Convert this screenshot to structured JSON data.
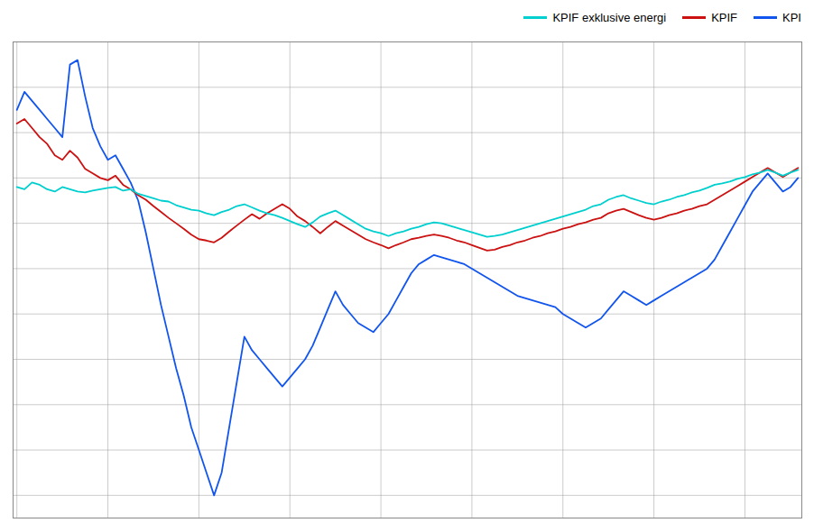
{
  "chart_data": {
    "type": "line",
    "x": [
      0,
      1,
      2,
      3,
      4,
      5,
      6,
      7,
      8,
      9,
      10,
      11,
      12,
      13,
      14,
      15,
      16,
      17,
      18,
      19,
      20,
      21,
      22,
      23,
      24,
      25,
      26,
      27,
      28,
      29,
      30,
      31,
      32,
      33,
      34,
      35,
      36,
      37,
      38,
      39,
      40,
      41,
      42,
      43,
      44,
      45,
      46,
      47,
      48,
      49,
      50,
      51,
      52,
      53,
      54,
      55,
      56,
      57,
      58,
      59,
      60,
      61,
      62,
      63,
      64,
      65,
      66,
      67,
      68,
      69,
      70,
      71,
      72,
      73,
      74,
      75,
      76,
      77,
      78,
      79,
      80,
      81,
      82,
      83,
      84,
      85,
      86,
      87,
      88,
      89,
      90,
      91,
      92,
      93,
      94,
      95,
      96,
      97,
      98,
      99,
      100,
      101,
      102,
      103
    ],
    "series": [
      {
        "name": "KPI",
        "color": "#1155EE",
        "values": [
          3.5,
          3.9,
          3.7,
          3.5,
          3.3,
          3.1,
          2.9,
          4.5,
          4.6,
          3.8,
          3.1,
          2.7,
          2.4,
          2.5,
          2.2,
          1.9,
          1.5,
          0.8,
          0.0,
          -0.8,
          -1.5,
          -2.2,
          -2.8,
          -3.5,
          -4.0,
          -4.5,
          -5.0,
          -4.5,
          -3.5,
          -2.5,
          -1.5,
          -1.8,
          -2.0,
          -2.2,
          -2.4,
          -2.6,
          -2.4,
          -2.2,
          -2.0,
          -1.7,
          -1.3,
          -0.9,
          -0.5,
          -0.8,
          -1.0,
          -1.2,
          -1.3,
          -1.4,
          -1.2,
          -1.0,
          -0.7,
          -0.4,
          -0.1,
          0.1,
          0.2,
          0.3,
          0.25,
          0.2,
          0.15,
          0.1,
          0.0,
          -0.1,
          -0.2,
          -0.3,
          -0.4,
          -0.5,
          -0.6,
          -0.65,
          -0.7,
          -0.75,
          -0.8,
          -0.85,
          -1.0,
          -1.1,
          -1.2,
          -1.3,
          -1.2,
          -1.1,
          -0.9,
          -0.7,
          -0.5,
          -0.6,
          -0.7,
          -0.8,
          -0.7,
          -0.6,
          -0.5,
          -0.4,
          -0.3,
          -0.2,
          -0.1,
          0.0,
          0.2,
          0.5,
          0.8,
          1.1,
          1.4,
          1.7,
          1.9,
          2.1,
          1.9,
          1.7,
          1.8,
          2.0
        ]
      },
      {
        "name": "KPIF",
        "color": "#CC1111",
        "values": [
          3.2,
          3.3,
          3.1,
          2.9,
          2.75,
          2.5,
          2.4,
          2.6,
          2.45,
          2.2,
          2.1,
          2.0,
          1.95,
          2.05,
          1.85,
          1.75,
          1.62,
          1.52,
          1.38,
          1.25,
          1.12,
          1.0,
          0.88,
          0.75,
          0.65,
          0.62,
          0.58,
          0.68,
          0.82,
          0.95,
          1.08,
          1.2,
          1.1,
          1.22,
          1.32,
          1.42,
          1.32,
          1.15,
          1.05,
          0.92,
          0.78,
          0.92,
          1.05,
          0.95,
          0.85,
          0.75,
          0.65,
          0.58,
          0.52,
          0.45,
          0.52,
          0.58,
          0.65,
          0.68,
          0.72,
          0.75,
          0.72,
          0.68,
          0.62,
          0.58,
          0.52,
          0.46,
          0.4,
          0.42,
          0.48,
          0.52,
          0.58,
          0.62,
          0.68,
          0.72,
          0.78,
          0.82,
          0.88,
          0.92,
          0.98,
          1.02,
          1.08,
          1.12,
          1.22,
          1.28,
          1.32,
          1.25,
          1.18,
          1.12,
          1.08,
          1.12,
          1.18,
          1.22,
          1.28,
          1.32,
          1.38,
          1.42,
          1.52,
          1.62,
          1.72,
          1.82,
          1.92,
          2.02,
          2.12,
          2.22,
          2.12,
          2.02,
          2.12,
          2.22
        ]
      },
      {
        "name": "KPIF exklusive energi",
        "color": "#00CFCF",
        "values": [
          1.8,
          1.75,
          1.9,
          1.85,
          1.75,
          1.7,
          1.8,
          1.75,
          1.7,
          1.68,
          1.72,
          1.75,
          1.78,
          1.8,
          1.72,
          1.75,
          1.65,
          1.6,
          1.55,
          1.5,
          1.48,
          1.4,
          1.35,
          1.3,
          1.28,
          1.22,
          1.18,
          1.25,
          1.3,
          1.38,
          1.42,
          1.35,
          1.28,
          1.22,
          1.18,
          1.12,
          1.05,
          0.98,
          0.92,
          1.02,
          1.15,
          1.22,
          1.28,
          1.18,
          1.08,
          0.98,
          0.88,
          0.82,
          0.78,
          0.72,
          0.78,
          0.82,
          0.88,
          0.92,
          0.98,
          1.02,
          1.0,
          0.95,
          0.9,
          0.85,
          0.8,
          0.75,
          0.7,
          0.72,
          0.75,
          0.8,
          0.85,
          0.9,
          0.95,
          1.0,
          1.05,
          1.1,
          1.15,
          1.2,
          1.25,
          1.3,
          1.38,
          1.42,
          1.52,
          1.58,
          1.62,
          1.55,
          1.5,
          1.45,
          1.42,
          1.48,
          1.52,
          1.58,
          1.62,
          1.68,
          1.72,
          1.78,
          1.85,
          1.88,
          1.92,
          1.98,
          2.02,
          2.08,
          2.12,
          2.18,
          2.12,
          2.05,
          2.12,
          2.18
        ]
      }
    ],
    "xlim": [
      -0.5,
      103.5
    ],
    "xticks": [
      0,
      12,
      24,
      36,
      48,
      60,
      72,
      84,
      96
    ],
    "ylim": [
      -5.5,
      5.0
    ],
    "yticks": [
      -5,
      -4,
      -3,
      -2,
      -1,
      0,
      1,
      2,
      3,
      4,
      5
    ],
    "grid": true,
    "tick_labels": false,
    "legend": "upper right"
  }
}
